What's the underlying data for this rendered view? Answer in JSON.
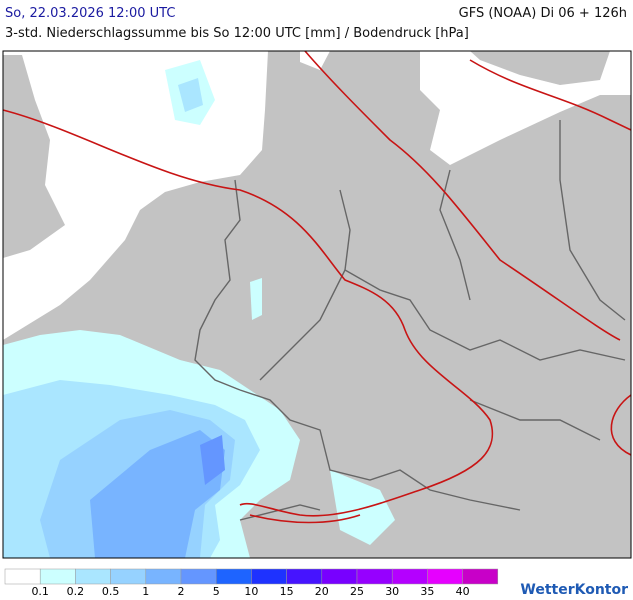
{
  "header": {
    "date": "So, 22.03.2026 12:00 UTC",
    "model": "GFS (NOAA) Di 06 + 126h",
    "subtitle": "3-std. Niederschlagssumme bis So 12:00 UTC [mm] / Bodendruck [hPa]"
  },
  "legend": {
    "colors": [
      "#ffffff",
      "#ccffff",
      "#aae6ff",
      "#96d2ff",
      "#78b4ff",
      "#6496ff",
      "#1e64ff",
      "#1e32ff",
      "#4614ff",
      "#7800ff",
      "#9600ff",
      "#b400ff",
      "#e600ff",
      "#c800c8"
    ],
    "labels": [
      0.1,
      0.2,
      0.5,
      1,
      2,
      5,
      10,
      15,
      20,
      25,
      30,
      35,
      40
    ]
  },
  "logo": "WetterKontor"
}
